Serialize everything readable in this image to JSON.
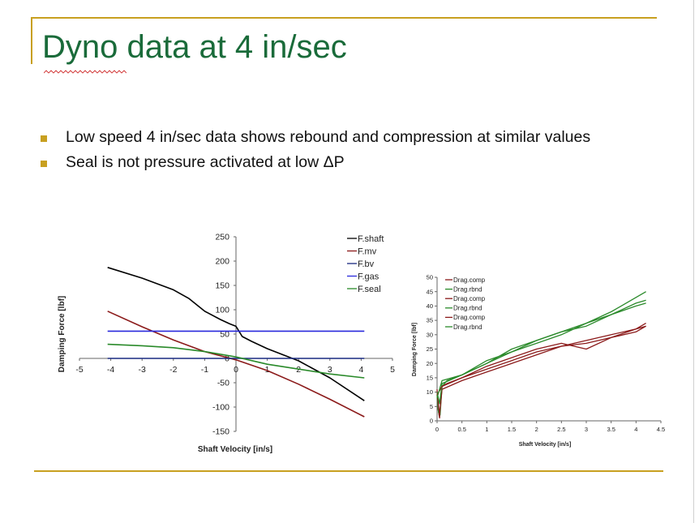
{
  "slide": {
    "title": "Dyno data at 4 in/sec",
    "bullets": [
      "Low speed 4 in/sec data shows rebound and compression at similar values",
      "Seal is not pressure activated at low ΔP"
    ]
  },
  "colors": {
    "accent": "#c8a020",
    "title": "#1a6b3a",
    "black": "#000000",
    "darkred": "#8b1a1a",
    "navy": "#1a2a80",
    "blue": "#2a2adc",
    "green": "#2a8a2a"
  },
  "chart_data": [
    {
      "type": "line",
      "xlabel": "Shaft Velocity [in/s]",
      "ylabel": "Damping Force [lbf]",
      "xlim": [
        -5,
        5
      ],
      "ylim": [
        -150,
        250
      ],
      "xticks": [
        -5,
        -4,
        -3,
        -2,
        -1,
        0,
        1,
        2,
        3,
        4,
        5
      ],
      "yticks": [
        -150,
        -100,
        -50,
        0,
        50,
        100,
        150,
        200,
        250
      ],
      "legend_position": "top-right",
      "series": [
        {
          "name": "F.shaft",
          "color": "black",
          "x": [
            -4.1,
            -3,
            -2,
            -1.5,
            -1,
            -0.5,
            -0.2,
            0,
            0.2,
            0.5,
            1,
            2,
            3,
            4.1
          ],
          "y": [
            187,
            165,
            141,
            123,
            97,
            80,
            71,
            66,
            45,
            35,
            20,
            -5,
            -40,
            -87
          ]
        },
        {
          "name": "F.mv",
          "color": "darkred",
          "x": [
            -4.1,
            -3,
            -2,
            -1,
            0,
            1,
            2,
            3,
            4.1
          ],
          "y": [
            97,
            65,
            38,
            14,
            -3,
            -25,
            -53,
            -84,
            -120
          ]
        },
        {
          "name": "F.bv",
          "color": "navy",
          "x": [
            -4.1,
            -2,
            0,
            2,
            4.1
          ],
          "y": [
            0,
            0,
            0,
            0,
            0
          ]
        },
        {
          "name": "F.gas",
          "color": "blue",
          "x": [
            -4.1,
            -2,
            0,
            2,
            4.1
          ],
          "y": [
            56,
            56,
            56,
            56,
            56
          ]
        },
        {
          "name": "F.seal",
          "color": "green",
          "x": [
            -4.1,
            -3,
            -2,
            -1,
            0,
            1,
            2,
            3,
            4.1
          ],
          "y": [
            29,
            26,
            22,
            14,
            3,
            -12,
            -22,
            -32,
            -40
          ]
        }
      ]
    },
    {
      "type": "line",
      "xlabel": "Shaft Velocity [in/s]",
      "ylabel": "Damping Force [lbf]",
      "xlim": [
        0,
        4.5
      ],
      "ylim": [
        0,
        50
      ],
      "xticks": [
        0,
        0.5,
        1,
        1.5,
        2,
        2.5,
        3,
        3.5,
        4,
        4.5
      ],
      "yticks": [
        0,
        5,
        10,
        15,
        20,
        25,
        30,
        35,
        40,
        45,
        50
      ],
      "legend_position": "top-left",
      "series": [
        {
          "name": "Drag.comp",
          "color": "darkred",
          "x": [
            0,
            0.02,
            0.05,
            0.08,
            0.1,
            0.2,
            0.5,
            1,
            1.5,
            2,
            2.5,
            3,
            3.5,
            4,
            4.2
          ],
          "y": [
            11,
            4,
            1,
            8,
            12,
            13,
            15,
            18,
            21,
            24,
            26,
            28,
            30,
            32,
            33
          ]
        },
        {
          "name": "Drag.rbnd",
          "color": "green",
          "x": [
            0,
            0.03,
            0.06,
            0.1,
            0.2,
            0.5,
            1,
            1.5,
            2,
            2.5,
            3,
            3.5,
            4,
            4.2
          ],
          "y": [
            9,
            3,
            2,
            12,
            14,
            16,
            20,
            25,
            28,
            31,
            33,
            37,
            41,
            42
          ]
        },
        {
          "name": "Drag.comp",
          "color": "darkred",
          "x": [
            0,
            0.05,
            0.1,
            0.5,
            1,
            1.5,
            2,
            2.5,
            3,
            3.5,
            4,
            4.2
          ],
          "y": [
            10,
            2,
            11,
            14,
            17,
            20,
            23,
            26,
            27,
            29,
            31,
            33
          ]
        },
        {
          "name": "Drag.rbnd",
          "color": "green",
          "x": [
            0,
            0.05,
            0.1,
            0.5,
            1,
            1.5,
            2,
            2.5,
            3,
            3.5,
            4,
            4.2
          ],
          "y": [
            10,
            6,
            13,
            16,
            21,
            24,
            28,
            31,
            34,
            38,
            43,
            45
          ]
        },
        {
          "name": "Drag.comp",
          "color": "darkred",
          "x": [
            0,
            0.1,
            0.5,
            1,
            1.5,
            2,
            2.5,
            3,
            3.5,
            4,
            4.2
          ],
          "y": [
            9,
            12,
            15,
            19,
            22,
            25,
            27,
            25,
            29,
            32,
            34
          ]
        },
        {
          "name": "Drag.rbnd",
          "color": "green",
          "x": [
            0,
            0.1,
            0.5,
            1,
            1.5,
            2,
            2.5,
            3,
            3.5,
            4,
            4.2
          ],
          "y": [
            8,
            14,
            16,
            20,
            24,
            27,
            30,
            34,
            37,
            40,
            41
          ]
        }
      ]
    }
  ]
}
